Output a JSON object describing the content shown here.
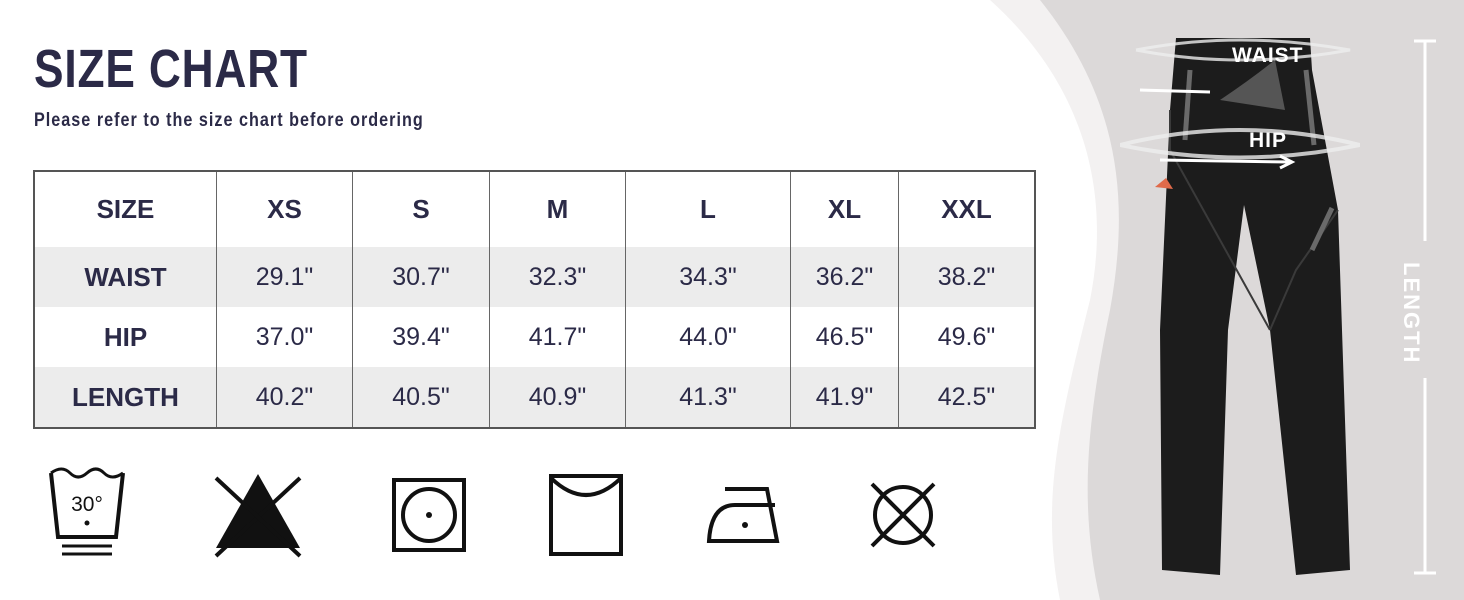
{
  "header": {
    "title": "SIZE CHART",
    "subtitle": "Please refer to the size chart before ordering"
  },
  "table": {
    "columns": [
      "SIZE",
      "XS",
      "S",
      "M",
      "L",
      "XL",
      "XXL"
    ],
    "rows": [
      {
        "label": "WAIST",
        "values": [
          "29.1\"",
          "30.7\"",
          "32.3\"",
          "34.3\"",
          "36.2\"",
          "38.2\""
        ]
      },
      {
        "label": "HIP",
        "values": [
          "37.0\"",
          "39.4\"",
          "41.7\"",
          "44.0\"",
          "46.5\"",
          "49.6\""
        ]
      },
      {
        "label": "LENGTH",
        "values": [
          "40.2\"",
          "40.5\"",
          "40.9\"",
          "41.3\"",
          "41.9\"",
          "42.5\""
        ]
      }
    ]
  },
  "care_icons": [
    {
      "icon": "wash-30-icon",
      "text": "30°"
    },
    {
      "icon": "do-not-bleach-icon"
    },
    {
      "icon": "tumble-dry-icon"
    },
    {
      "icon": "line-dry-icon"
    },
    {
      "icon": "iron-low-icon"
    },
    {
      "icon": "do-not-dry-clean-icon"
    }
  ],
  "diagram": {
    "waist": "WAIST",
    "hip": "HIP",
    "length": "LENGTH"
  },
  "colors": {
    "text": "#2b2a47",
    "row_shade": "#ececec",
    "panel_bg": "#dcd9d9",
    "pants": "#1a1a1a"
  }
}
